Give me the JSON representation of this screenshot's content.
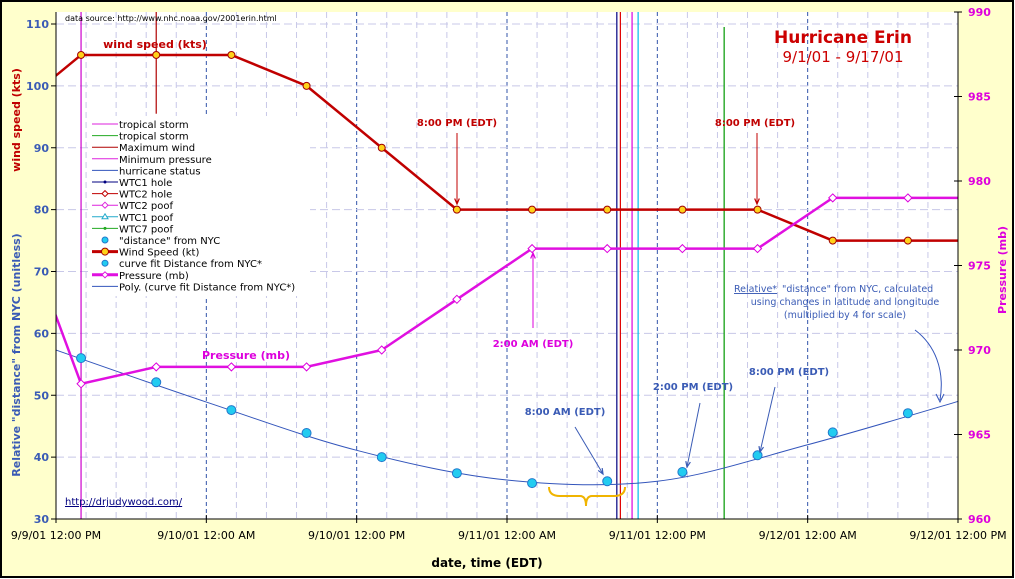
{
  "chart_data": {
    "type": "line",
    "title": "Hurricane Erin",
    "subtitle": "9/1/01 - 9/17/01",
    "source_note": "data source: http://www.nhc.noaa.gov/2001erin.html",
    "site_link": "http://drjudywood.com/",
    "xlabel": "date, time (EDT)",
    "ylabel_left_wind": "wind speed (kts)",
    "ylabel_left_distance": "Relative \"distance\" from NYC (unitless)",
    "ylabel_right": "Pressure (mb)",
    "xlim": [
      "9/9/01 12:00 PM",
      "9/12/01 12:00 PM"
    ],
    "ylim_left": [
      30,
      112
    ],
    "ylim_right": [
      960,
      990
    ],
    "grid": true,
    "legend_placement": "left",
    "x_ticks": [
      "9/9/01 12:00 PM",
      "9/10/01 12:00 AM",
      "9/10/01 12:00 PM",
      "9/11/01 12:00 AM",
      "9/11/01 12:00 PM",
      "9/12/01 12:00 AM",
      "9/12/01 12:00 PM"
    ],
    "y_ticks_left": [
      "30",
      "40",
      "50",
      "60",
      "70",
      "80",
      "90",
      "100",
      "110"
    ],
    "y_ticks_right": [
      "960",
      "965",
      "970",
      "975",
      "980",
      "985",
      "990"
    ],
    "x": [
      "9/9/01 8:00 AM",
      "9/9/01 2:00 PM",
      "9/9/01 8:00 PM",
      "9/10/01 2:00 AM",
      "9/10/01 8:00 AM",
      "9/10/01 2:00 PM",
      "9/10/01 8:00 PM",
      "9/11/01 2:00 AM",
      "9/11/01 8:00 AM",
      "9/11/01 2:00 PM",
      "9/11/01 8:00 PM",
      "9/12/01 2:00 AM",
      "9/12/01 8:00 AM",
      "9/12/01 2:00 PM"
    ],
    "series": [
      {
        "name": "Wind Speed (kt)",
        "axis": "left",
        "color": "#c00000",
        "values": [
          95,
          105,
          105,
          105,
          100,
          90,
          80,
          80,
          80,
          80,
          80,
          75,
          75,
          75
        ]
      },
      {
        "name": "Pressure (mb)",
        "axis": "right",
        "color": "#e010e0",
        "values": [
          980,
          968,
          969,
          969,
          969,
          970,
          973,
          976,
          976,
          976,
          976,
          979,
          979,
          979
        ]
      },
      {
        "name": "\"distance\" from NYC",
        "axis": "left",
        "color": "#22ccf0",
        "values": [
          null,
          56,
          52.1,
          47.6,
          43.9,
          40,
          37.4,
          35.8,
          36.1,
          37.6,
          40.3,
          44,
          47.1,
          null
        ]
      }
    ],
    "curve_fit": {
      "name": "Poly. (curve fit Distance from NYC*)",
      "color": "#3355bb",
      "x": [
        "9/9/01 12:00 PM",
        "9/10/01 12:00 AM",
        "9/10/01 12:00 PM",
        "9/11/01 12:00 AM",
        "9/11/01 12:00 PM",
        "9/12/01 12:00 AM",
        "9/12/01 12:00 PM"
      ],
      "values": [
        57.3,
        48.9,
        41.1,
        36.3,
        36.1,
        42,
        49
      ]
    },
    "event_lines": [
      {
        "name": "Minimum pressure",
        "time": "9/9/01 2:00 PM",
        "color": "#cc00cc"
      },
      {
        "name": "Maximum wind",
        "time": "9/9/01 8:00 PM",
        "color": "#b00000"
      },
      {
        "name": "WTC1 hole",
        "time": "9/11/01 8:46 AM",
        "color": "#000080"
      },
      {
        "name": "WTC2 hole",
        "time": "9/11/01 9:03 AM",
        "color": "#e00000"
      },
      {
        "name": "WTC2 poof",
        "time": "9/11/01 9:59 AM",
        "color": "#dd00dd"
      },
      {
        "name": "WTC1 poof",
        "time": "9/11/01 10:28 AM",
        "color": "#00bbee"
      },
      {
        "name": "WTC7 poof",
        "time": "9/11/01 5:20 PM",
        "color": "#009900"
      }
    ],
    "labels": {
      "wind_series_label": "wind speed (kts)",
      "pressure_series_label": "Pressure (mb)",
      "distance_note_1": "Relative*",
      "distance_note_1b": " \"distance\" from NYC, calculated",
      "distance_note_2": "using changes in latitude and longitude",
      "distance_note_3": "(multiplied by 4 for scale)"
    },
    "annotations": [
      {
        "text": "8:00 PM (EDT)",
        "color": "#c00000",
        "target": "9/10/01 8:00 PM"
      },
      {
        "text": "8:00 PM (EDT)",
        "color": "#c00000",
        "target": "9/11/01 8:00 PM"
      },
      {
        "text": "2:00 AM (EDT)",
        "color": "#dd00dd",
        "target": "9/11/01 2:00 AM"
      },
      {
        "text": "8:00 AM (EDT)",
        "color": "#3a5bb5",
        "target": "9/11/01 8:00 AM"
      },
      {
        "text": "2:00 PM (EDT)",
        "color": "#3a5bb5",
        "target": "9/11/01 2:00 PM"
      },
      {
        "text": "8:00 PM (EDT)",
        "color": "#3a5bb5",
        "target": "9/11/01 8:00 PM"
      }
    ],
    "legend": [
      {
        "label": "tropical storm",
        "color": "#dd22dd",
        "marker": "none",
        "width": 1
      },
      {
        "label": "tropical storm",
        "color": "#22aa22",
        "marker": "none",
        "width": 1
      },
      {
        "label": "Maximum wind",
        "color": "#b00000",
        "marker": "none",
        "width": 1
      },
      {
        "label": "Minimum pressure",
        "color": "#dd22dd",
        "marker": "none",
        "width": 1
      },
      {
        "label": "hurricane status",
        "color": "#3355bb",
        "marker": "none",
        "width": 1
      },
      {
        "label": "WTC1 hole",
        "color": "#000080",
        "marker": "dot",
        "width": 1
      },
      {
        "label": "WTC2 hole",
        "color": "#c00000",
        "marker": "diamond",
        "width": 1
      },
      {
        "label": "WTC2 poof",
        "color": "#dd22dd",
        "marker": "diamond",
        "width": 1
      },
      {
        "label": "WTC1 poof",
        "color": "#22aacc",
        "marker": "triangle",
        "width": 1
      },
      {
        "label": "WTC7 poof",
        "color": "#22aa22",
        "marker": "dot",
        "width": 1
      },
      {
        "label": "\"distance\" from NYC",
        "color": "#22ccf0",
        "marker": "circle-only",
        "width": 0
      },
      {
        "label": "Wind Speed (kt)",
        "color": "#c00000",
        "marker": "yellow-circle",
        "width": 3
      },
      {
        "label": "curve fit Distance from NYC*",
        "color": "#22ccf0",
        "marker": "circle-only",
        "width": 0
      },
      {
        "label": "Pressure (mb)",
        "color": "#e010e0",
        "marker": "diamond",
        "width": 3
      },
      {
        "label": "Poly. (curve fit Distance from NYC*)",
        "color": "#3355bb",
        "marker": "none",
        "width": 1
      }
    ]
  }
}
